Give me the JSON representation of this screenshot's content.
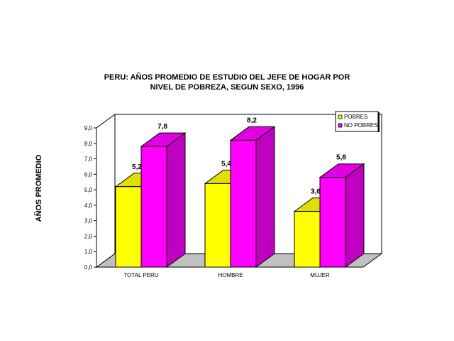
{
  "chart_data": {
    "type": "bar",
    "title_line1": "PERU: AÑOS PROMEDIO DE ESTUDIO DEL JEFE DE HOGAR POR",
    "title_line2": "NIVEL DE POBREZA, SEGUN SEXO, 1996",
    "ylabel": "AÑOS  PROMEDIO",
    "xlabel": "",
    "categories": [
      "TOTAL PERU",
      "HOMBRE",
      "MUJER"
    ],
    "series": [
      {
        "name": "POBRES",
        "values": [
          5.2,
          5.4,
          3.6
        ],
        "labels": [
          "5,2",
          "5,4",
          "3,6"
        ],
        "color": "#ffff00"
      },
      {
        "name": "NO POBRES",
        "values": [
          7.8,
          8.2,
          5.8
        ],
        "labels": [
          "7,8",
          "8,2",
          "5,8"
        ],
        "color": "#ff00ff"
      }
    ],
    "ylim": [
      0,
      9
    ],
    "yticks": [
      "0,0",
      "1,0",
      "2,0",
      "3,0",
      "4,0",
      "5,0",
      "6,0",
      "7,0",
      "8,0",
      "9,0"
    ],
    "grid": false,
    "legend_position": "top-right",
    "three_d": true
  }
}
